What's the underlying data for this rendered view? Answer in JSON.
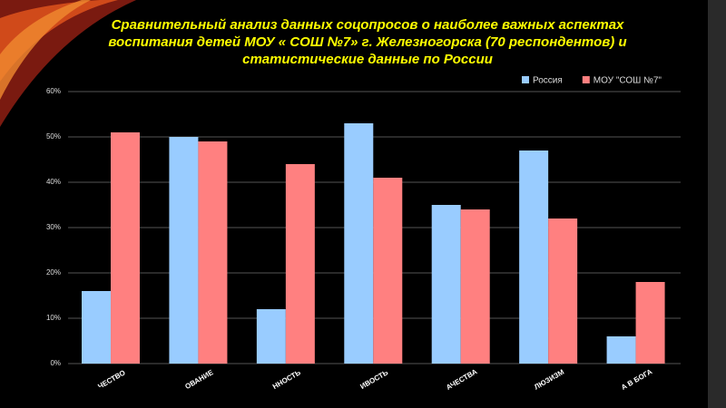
{
  "chart_data": {
    "type": "bar",
    "title": [
      "Сравнительный  анализ  данных соцопросов о наиболее важных аспектах",
      "воспитания детей  МОУ « СОШ №7» г. Железногорска  (70 респондентов) и",
      "статистические данные по России"
    ],
    "categories": [
      "ЧЕСТВО",
      "ОВАНИЕ",
      "ННОСТЬ",
      "ИВОСТЬ",
      "АЧЕСТВА",
      "ЛЮЗИЗМ",
      "А В БОГА"
    ],
    "series": [
      {
        "name": "Россия",
        "color": "#99ccff",
        "values": [
          16,
          50,
          12,
          53,
          35,
          47,
          6
        ]
      },
      {
        "name": "МОУ \"СОШ №7\"",
        "color": "#ff8080",
        "values": [
          51,
          49,
          44,
          41,
          34,
          32,
          18
        ]
      }
    ],
    "ylim": [
      0,
      60
    ],
    "yticks": [
      {
        "value": 0,
        "label": "0%"
      },
      {
        "value": 10,
        "label": "10%"
      },
      {
        "value": 20,
        "label": "20%"
      },
      {
        "value": 30,
        "label": "30%"
      },
      {
        "value": 40,
        "label": "40%"
      },
      {
        "value": 50,
        "label": "50%"
      },
      {
        "value": 60,
        "label": "60%"
      }
    ],
    "grid": true,
    "legend": "top-right"
  }
}
